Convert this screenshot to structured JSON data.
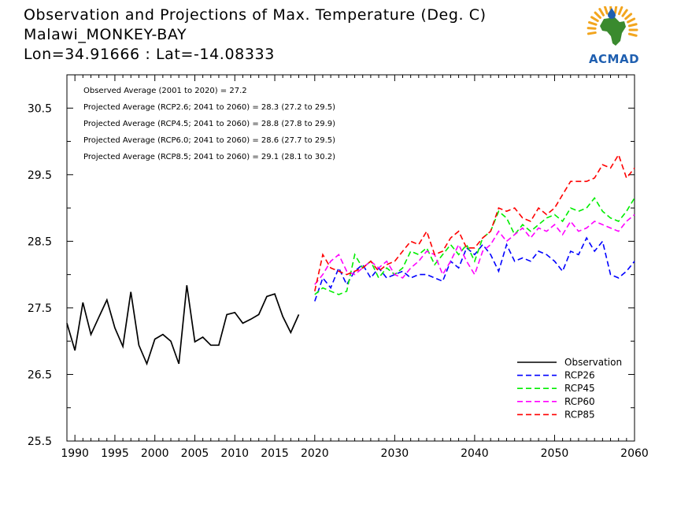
{
  "header": {
    "title": "Observation and Projections of Max. Temperature (Deg. C)",
    "station": "Malawi_MONKEY-BAY",
    "coords": "Lon=34.91666 : Lat=-14.08333"
  },
  "logo": {
    "text": "ACMAD",
    "colors": {
      "africa": "#3a8a2e",
      "rays": "#f2a51e",
      "drop": "#1f5fb0",
      "text": "#1f5fb0"
    }
  },
  "annotations": [
    "Observed Average (2001 to 2020) = 27.2",
    "Projected Average (RCP2.6; 2041 to 2060) = 28.3 (27.2 to 29.5)",
    "Projected Average (RCP4.5; 2041 to 2060) = 28.8 (27.8 to 29.9)",
    "Projected Average (RCP6.0; 2041 to 2060) = 28.6 (27.7 to 29.5)",
    "Projected Average (RCP8.5; 2041 to 2060) = 29.1 (28.1 to 30.2)"
  ],
  "chart_data": {
    "type": "line",
    "title": "Observation and Projections of Max. Temperature (Deg. C)",
    "xlabel": "",
    "ylabel": "",
    "xlim": [
      1989,
      2060
    ],
    "ylim": [
      25.5,
      31.0
    ],
    "x_ticks": [
      {
        "value": 1990,
        "label": "1990"
      },
      {
        "value": 1995,
        "label": "1995"
      },
      {
        "value": 2000,
        "label": "2000"
      },
      {
        "value": 2005,
        "label": "2005"
      },
      {
        "value": 2010,
        "label": "2010"
      },
      {
        "value": 2015,
        "label": "2015"
      },
      {
        "value": 2020,
        "label": "2020"
      },
      {
        "value": 2030,
        "label": "2030"
      },
      {
        "value": 2040,
        "label": "2040"
      },
      {
        "value": 2050,
        "label": "2050"
      },
      {
        "value": 2060,
        "label": "2060"
      }
    ],
    "y_ticks": [
      {
        "value": 25.5,
        "label": "25.5"
      },
      {
        "value": 26.5,
        "label": "26.5"
      },
      {
        "value": 27.5,
        "label": "27.5"
      },
      {
        "value": 28.5,
        "label": "28.5"
      },
      {
        "value": 29.5,
        "label": "29.5"
      },
      {
        "value": 30.5,
        "label": "30.5"
      }
    ],
    "y_minor_ticks": [
      26.0,
      27.0,
      28.0,
      29.0,
      30.0,
      31.0
    ],
    "grid": false,
    "legend_position": "bottom-right",
    "series": [
      {
        "name": "Observation",
        "color": "#000000",
        "dashed": false,
        "x": [
          1989,
          1990,
          1991,
          1992,
          1993,
          1994,
          1995,
          1996,
          1997,
          1998,
          1999,
          2000,
          2001,
          2002,
          2003,
          2004,
          2005,
          2006,
          2007,
          2008,
          2009,
          2010,
          2011,
          2012,
          2013,
          2014,
          2015,
          2016,
          2017,
          2018,
          2019
        ],
        "y": [
          27.27,
          26.86,
          27.58,
          27.1,
          27.36,
          27.62,
          27.2,
          26.92,
          27.74,
          26.94,
          26.66,
          27.03,
          27.1,
          27.0,
          26.66,
          27.84,
          26.99,
          27.06,
          26.94,
          26.94,
          27.4,
          27.43,
          27.27,
          27.33,
          27.4,
          27.67,
          27.71,
          27.37,
          27.13,
          27.4,
          null
        ]
      },
      {
        "name": "RCP26",
        "color": "#0000ff",
        "dashed": true,
        "x": [
          2020,
          2021,
          2022,
          2023,
          2024,
          2025,
          2026,
          2027,
          2028,
          2029,
          2030,
          2031,
          2032,
          2033,
          2034,
          2035,
          2036,
          2037,
          2038,
          2039,
          2040,
          2041,
          2042,
          2043,
          2044,
          2045,
          2046,
          2047,
          2048,
          2049,
          2050,
          2051,
          2052,
          2053,
          2054,
          2055,
          2056,
          2057,
          2058,
          2059,
          2060
        ],
        "y": [
          27.6,
          27.95,
          27.8,
          28.1,
          27.85,
          28.05,
          28.15,
          27.95,
          28.1,
          27.95,
          28.0,
          28.05,
          27.95,
          28.0,
          28.0,
          27.95,
          27.9,
          28.2,
          28.1,
          28.4,
          28.3,
          28.45,
          28.3,
          28.05,
          28.45,
          28.2,
          28.25,
          28.2,
          28.35,
          28.3,
          28.2,
          28.05,
          28.35,
          28.3,
          28.55,
          28.35,
          28.5,
          28.0,
          27.95,
          28.05,
          28.2
        ]
      },
      {
        "name": "RCP45",
        "color": "#00ee00",
        "dashed": true,
        "x": [
          2020,
          2021,
          2022,
          2023,
          2024,
          2025,
          2026,
          2027,
          2028,
          2029,
          2030,
          2031,
          2032,
          2033,
          2034,
          2035,
          2036,
          2037,
          2038,
          2039,
          2040,
          2041,
          2042,
          2043,
          2044,
          2045,
          2046,
          2047,
          2048,
          2049,
          2050,
          2051,
          2052,
          2053,
          2054,
          2055,
          2056,
          2057,
          2058,
          2059,
          2060
        ],
        "y": [
          27.7,
          27.8,
          27.75,
          27.7,
          27.75,
          28.3,
          28.1,
          28.2,
          27.95,
          28.1,
          28.0,
          28.1,
          28.35,
          28.3,
          28.4,
          28.15,
          28.3,
          28.45,
          28.3,
          28.45,
          28.2,
          28.55,
          28.65,
          28.95,
          28.85,
          28.6,
          28.75,
          28.65,
          28.75,
          28.85,
          28.9,
          28.8,
          29.0,
          28.95,
          29.0,
          29.15,
          28.95,
          28.85,
          28.8,
          28.95,
          29.15
        ]
      },
      {
        "name": "RCP60",
        "color": "#ff00ff",
        "dashed": true,
        "x": [
          2020,
          2021,
          2022,
          2023,
          2024,
          2025,
          2026,
          2027,
          2028,
          2029,
          2030,
          2031,
          2032,
          2033,
          2034,
          2035,
          2036,
          2037,
          2038,
          2039,
          2040,
          2041,
          2042,
          2043,
          2044,
          2045,
          2046,
          2047,
          2048,
          2049,
          2050,
          2051,
          2052,
          2053,
          2054,
          2055,
          2056,
          2057,
          2058,
          2059,
          2060
        ],
        "y": [
          27.85,
          28.0,
          28.2,
          28.3,
          28.05,
          28.0,
          28.1,
          28.2,
          28.1,
          28.2,
          28.0,
          27.95,
          28.1,
          28.2,
          28.35,
          28.3,
          28.0,
          28.2,
          28.45,
          28.2,
          28.0,
          28.35,
          28.45,
          28.65,
          28.5,
          28.6,
          28.7,
          28.55,
          28.7,
          28.65,
          28.75,
          28.6,
          28.8,
          28.65,
          28.7,
          28.8,
          28.75,
          28.7,
          28.65,
          28.8,
          28.9
        ]
      },
      {
        "name": "RCP85",
        "color": "#ff0000",
        "dashed": true,
        "x": [
          2020,
          2021,
          2022,
          2023,
          2024,
          2025,
          2026,
          2027,
          2028,
          2029,
          2030,
          2031,
          2032,
          2033,
          2034,
          2035,
          2036,
          2037,
          2038,
          2039,
          2040,
          2041,
          2042,
          2043,
          2044,
          2045,
          2046,
          2047,
          2048,
          2049,
          2050,
          2051,
          2052,
          2053,
          2054,
          2055,
          2056,
          2057,
          2058,
          2059,
          2060
        ],
        "y": [
          27.75,
          28.3,
          28.1,
          28.05,
          28.0,
          28.05,
          28.1,
          28.2,
          28.05,
          28.15,
          28.2,
          28.35,
          28.5,
          28.45,
          28.65,
          28.3,
          28.35,
          28.55,
          28.65,
          28.4,
          28.4,
          28.55,
          28.65,
          29.0,
          28.95,
          29.0,
          28.85,
          28.8,
          29.0,
          28.9,
          29.0,
          29.2,
          29.4,
          29.4,
          29.4,
          29.45,
          29.65,
          29.6,
          29.8,
          29.45,
          29.6
        ]
      }
    ]
  }
}
